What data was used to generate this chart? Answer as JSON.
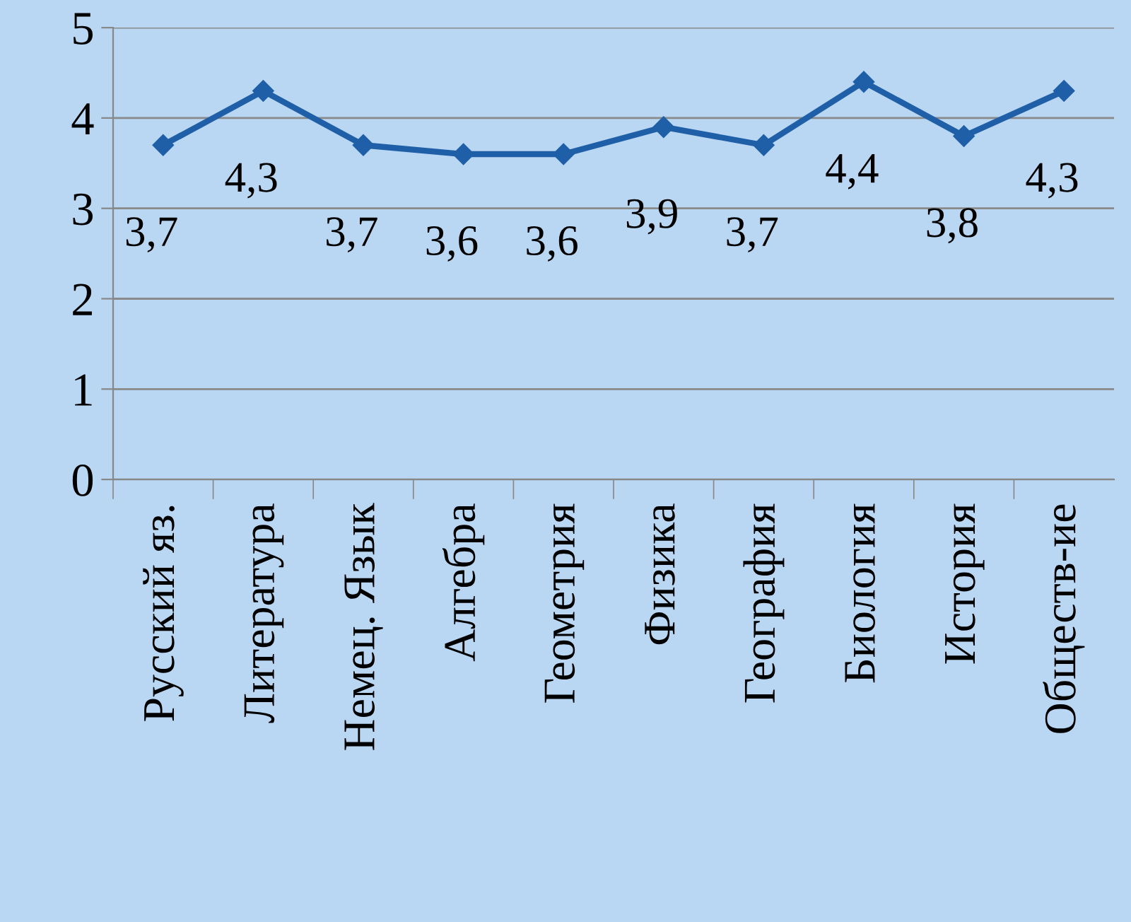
{
  "chart_data": {
    "type": "line",
    "categories": [
      "Русский яз.",
      "Литература",
      "Немец. Язык",
      "Алгебра",
      "Геометрия",
      "Физика",
      "География",
      "Биология",
      "История",
      "Обществ-ие"
    ],
    "series": [
      {
        "color": "#1f5fa8",
        "values": [
          3.7,
          4.3,
          3.7,
          3.6,
          3.6,
          3.9,
          3.7,
          4.4,
          3.8,
          4.3
        ],
        "value_labels": [
          "3,7",
          "4,3",
          "3,7",
          "3,6",
          "3,6",
          "3,9",
          "3,7",
          "4,4",
          "3,8",
          "4,3"
        ]
      }
    ],
    "ylim": [
      0,
      5
    ],
    "yticks": [
      0,
      1,
      2,
      3,
      4,
      5
    ],
    "grid": "y",
    "marker": "diamond",
    "line_style": "solid",
    "legend": false
  }
}
